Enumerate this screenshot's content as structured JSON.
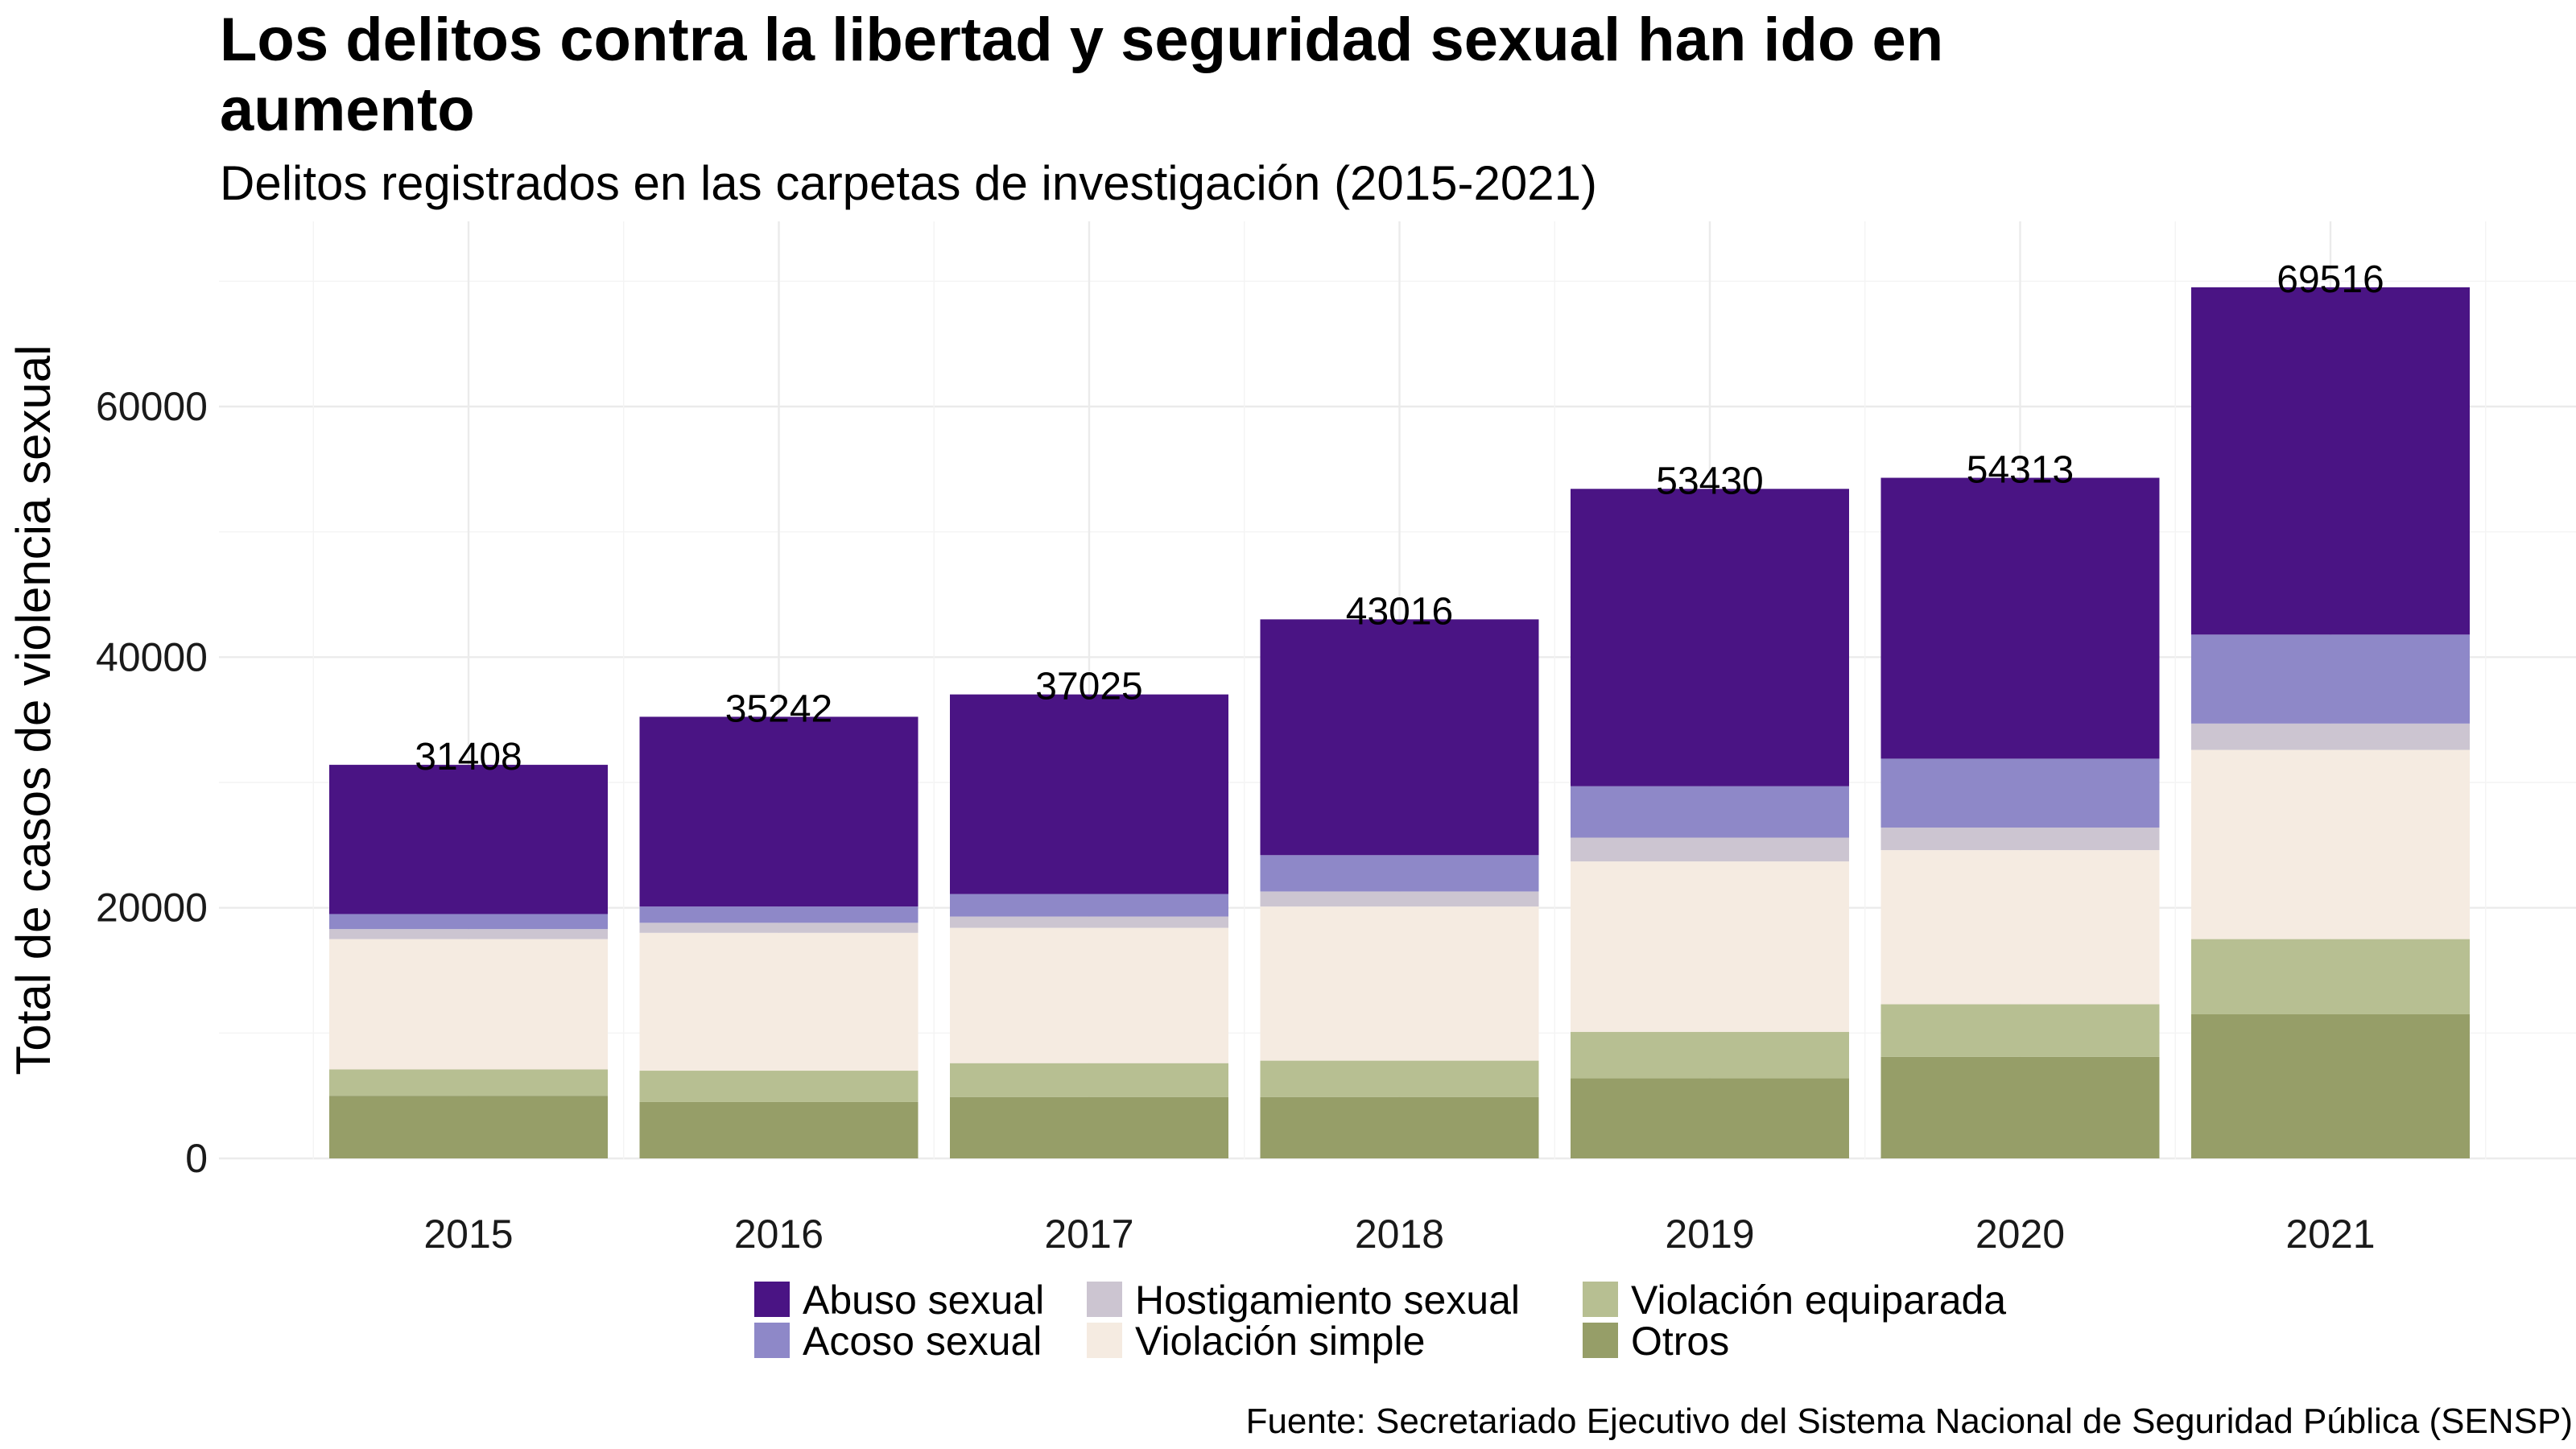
{
  "chart_data": {
    "type": "bar",
    "stacked": true,
    "title": "Los delitos contra la libertad y seguridad sexual han ido en aumento",
    "title_lines": [
      "Los delitos contra la libertad y seguridad sexual han ido en",
      "aumento"
    ],
    "subtitle": "Delitos registrados en las carpetas de investigación (2015-2021)",
    "xlabel": "",
    "ylabel": "Total de casos de violencia sexual",
    "caption": "Fuente: Secretariado Ejecutivo del Sistema Nacional de Seguridad Pública (SENSP)",
    "categories": [
      "2015",
      "2016",
      "2017",
      "2018",
      "2019",
      "2020",
      "2021"
    ],
    "y_ticks": [
      0,
      20000,
      40000,
      60000
    ],
    "y_tick_labels": [
      "0",
      "20000",
      "40000",
      "60000"
    ],
    "ylim": [
      0,
      72000
    ],
    "grid": true,
    "legend_position": "bottom",
    "totals": [
      31408,
      35242,
      37025,
      43016,
      53430,
      54313,
      69516
    ],
    "series": [
      {
        "name": "Otros",
        "color": "#969e68",
        "values": [
          5000,
          4500,
          4900,
          4900,
          6400,
          8100,
          11500
        ]
      },
      {
        "name": "Violación equiparada",
        "color": "#b7bf92",
        "values": [
          2100,
          2500,
          2700,
          2900,
          3700,
          4200,
          6000
        ]
      },
      {
        "name": "Violación simple",
        "color": "#f5ebe1",
        "values": [
          10400,
          11000,
          10800,
          12300,
          13600,
          12300,
          15100
        ]
      },
      {
        "name": "Hostigamiento sexual",
        "color": "#ccc5d1",
        "values": [
          800,
          800,
          900,
          1200,
          1900,
          1800,
          2100
        ]
      },
      {
        "name": "Acoso sexual",
        "color": "#8e88c8",
        "values": [
          1200,
          1300,
          1800,
          2900,
          4100,
          5500,
          7100
        ]
      },
      {
        "name": "Abuso sexual",
        "color": "#4a1484",
        "values": [
          11908,
          15142,
          15925,
          18816,
          23730,
          22413,
          27716
        ]
      }
    ],
    "legend_order": [
      [
        "Abuso sexual",
        "Acoso sexual"
      ],
      [
        "Hostigamiento sexual",
        "Violación simple"
      ],
      [
        "Violación equiparada",
        "Otros"
      ]
    ]
  }
}
